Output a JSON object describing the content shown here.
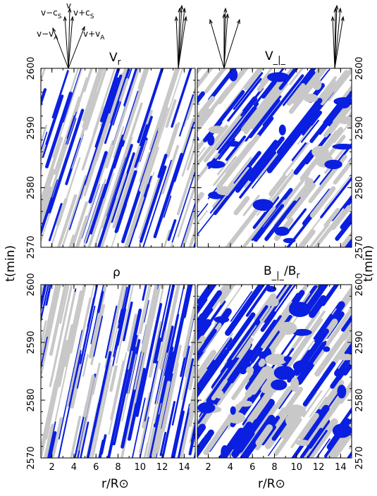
{
  "colors": {
    "positive": "#0a1fe0",
    "negative": "#c8c8c8",
    "axes": "#000000"
  },
  "axes": {
    "xlabel": "r/R⊙",
    "ylabel": "t(min)",
    "x_ticks": [
      "2",
      "4",
      "6",
      "8",
      "10",
      "12",
      "14"
    ],
    "y_ticks": [
      "2570",
      "2580",
      "2590",
      "2600"
    ]
  },
  "characteristics": {
    "labels": {
      "v": "v",
      "v_minus_cs": "v−c",
      "v_plus_cs": "v+c",
      "v_minus_vA": "v−v",
      "v_plus_vA": "v+v",
      "sub_s": "S",
      "sub_A": "A"
    }
  },
  "chart_data": [
    {
      "type": "heatmap",
      "title": "V",
      "title_sub": "r",
      "panel": "top-left",
      "xlim": [
        1,
        15
      ],
      "ylim": [
        2570,
        2600
      ],
      "pattern": {
        "angle_deg": 72,
        "seed": 11,
        "blue_density": 0.9,
        "gray_density": 1.1
      },
      "arrows_at_r": [
        3.5,
        13.5
      ]
    },
    {
      "type": "heatmap",
      "title": "V",
      "title_sub": "_|_",
      "panel": "top-right",
      "xlim": [
        1,
        15
      ],
      "ylim": [
        2570,
        2600
      ],
      "pattern": {
        "angle_deg": 52,
        "seed": 23,
        "blue_density": 1.0,
        "gray_density": 1.2
      },
      "arrows_at_r": [
        3.5,
        13.5
      ]
    },
    {
      "type": "heatmap",
      "title": "ρ",
      "title_sub": "",
      "panel": "bottom-left",
      "xlim": [
        1,
        15
      ],
      "ylim": [
        2570,
        2600
      ],
      "pattern": {
        "angle_deg": 78,
        "seed": 37,
        "blue_density": 1.2,
        "gray_density": 1.1
      }
    },
    {
      "type": "heatmap",
      "title": "B",
      "title_sub": "_|_",
      "title_rest": "/B",
      "title_rest_sub": "r",
      "panel": "bottom-right",
      "xlim": [
        1,
        15
      ],
      "ylim": [
        2570,
        2600
      ],
      "pattern": {
        "angle_deg": 55,
        "seed": 51,
        "blue_density": 1.5,
        "gray_density": 1.2
      }
    }
  ]
}
